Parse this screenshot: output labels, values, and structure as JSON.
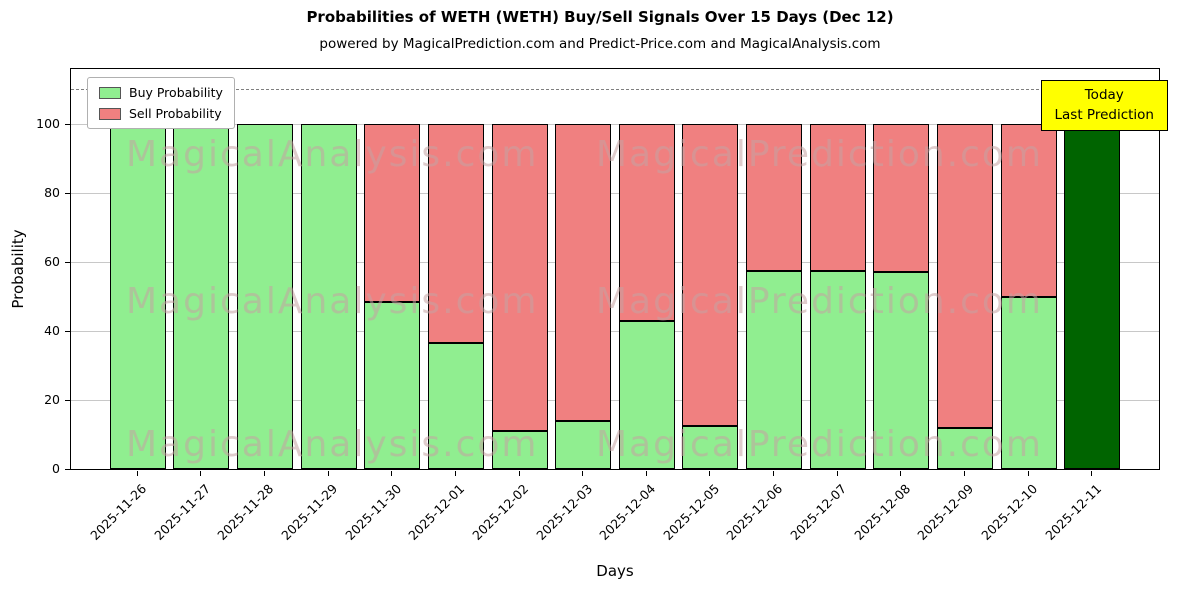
{
  "chart_data": {
    "type": "bar",
    "stacked": true,
    "title": "Probabilities of WETH (WETH) Buy/Sell Signals Over 15 Days (Dec 12)",
    "subtitle": "powered by MagicalPrediction.com and Predict-Price.com and MagicalAnalysis.com",
    "xlabel": "Days",
    "ylabel": "Probability",
    "ylim": [
      0,
      116
    ],
    "yticks": [
      0,
      20,
      40,
      60,
      80,
      100
    ],
    "grid": true,
    "dashed_line_y": 110,
    "categories": [
      "2025-11-26",
      "2025-11-27",
      "2025-11-28",
      "2025-11-29",
      "2025-11-30",
      "2025-12-01",
      "2025-12-02",
      "2025-12-03",
      "2025-12-04",
      "2025-12-05",
      "2025-12-06",
      "2025-12-07",
      "2025-12-08",
      "2025-12-09",
      "2025-12-10",
      "2025-12-11"
    ],
    "series": [
      {
        "name": "Buy Probability",
        "color": "#90ee90",
        "values": [
          100,
          100,
          100,
          100,
          48.5,
          36.5,
          11,
          14,
          43,
          12.5,
          57.5,
          57.5,
          57,
          12,
          50,
          100
        ]
      },
      {
        "name": "Sell Probability",
        "color": "#f08080",
        "values": [
          0,
          0,
          0,
          0,
          51.5,
          63.5,
          89,
          86,
          57,
          87.5,
          42.5,
          42.5,
          43,
          88,
          50,
          0
        ]
      }
    ],
    "today": {
      "index": 15,
      "bar_color": "#006400",
      "label_lines": [
        "Today",
        "Last Prediction"
      ],
      "label_bg": "#ffff00"
    },
    "legend": {
      "position": "upper-left",
      "entries": [
        {
          "label": "Buy Probability",
          "color": "#90ee90"
        },
        {
          "label": "Sell Probability",
          "color": "#f08080"
        }
      ]
    },
    "watermarks": [
      "MagicalAnalysis.com",
      "MagicalPrediction.com"
    ],
    "bar_edge_color": "#000000"
  }
}
